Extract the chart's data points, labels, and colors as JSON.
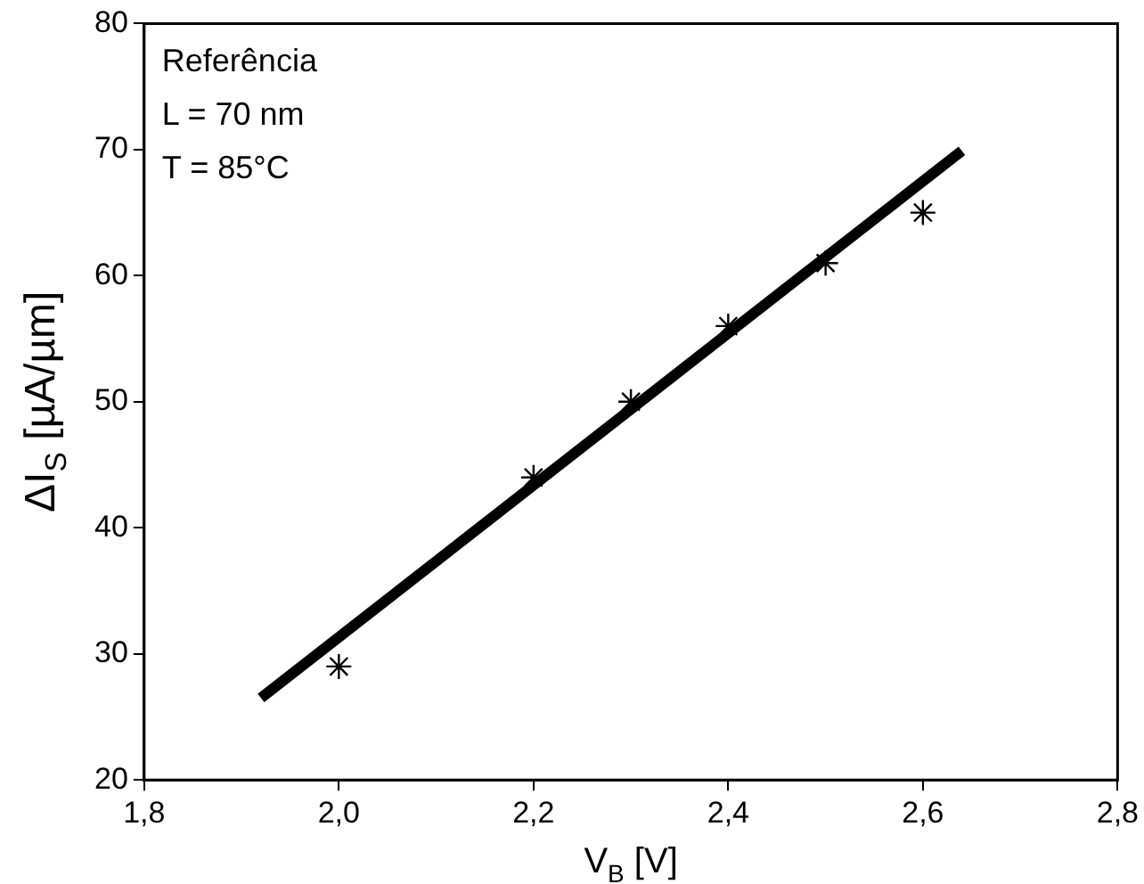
{
  "chart_data": {
    "type": "scatter",
    "xlabel": "V$_{B}$ [V]",
    "ylabel": "ΔI$_{S}$ [µA/µm]",
    "annotations": [
      "Referência",
      "L = 70 nm",
      "T = 85°C"
    ],
    "xlim": [
      1.8,
      2.8
    ],
    "xticks": [
      {
        "value": 1.8,
        "label": "1,8"
      },
      {
        "value": 2.0,
        "label": "2,0"
      },
      {
        "value": 2.2,
        "label": "2,2"
      },
      {
        "value": 2.4,
        "label": "2,4"
      },
      {
        "value": 2.6,
        "label": "2,6"
      },
      {
        "value": 2.8,
        "label": "2,8"
      }
    ],
    "ylim": [
      20,
      80
    ],
    "yticks": [
      20,
      30,
      40,
      50,
      60,
      70,
      80
    ],
    "legend": false,
    "marker": "cross",
    "series": [
      {
        "color": "#000000",
        "x": [
          2.0,
          2.2,
          2.3,
          2.4,
          2.5,
          2.6
        ],
        "values": [
          29,
          44,
          50,
          56,
          61,
          65
        ]
      },
      {
        "type": "line",
        "color": "#000000",
        "marker": "none",
        "x": [
          1.92,
          2.64
        ],
        "values": [
          26.5,
          69.9
        ]
      }
    ]
  }
}
